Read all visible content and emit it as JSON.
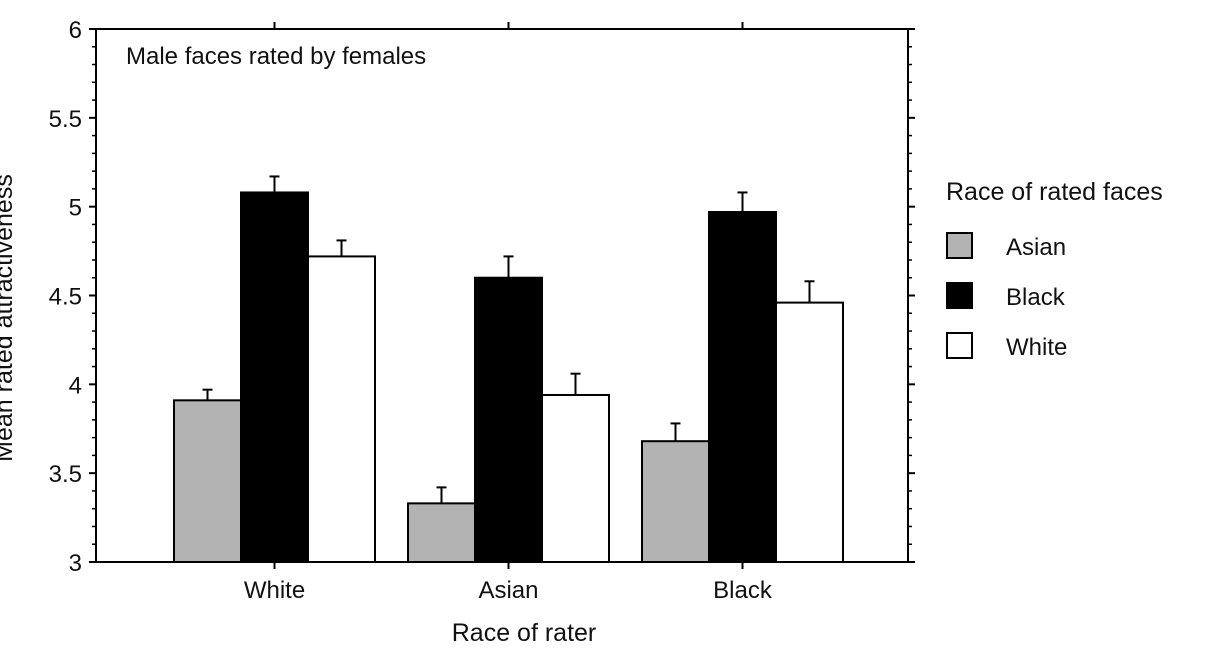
{
  "chart_data": {
    "type": "bar",
    "title": "Male faces rated by females",
    "xlabel": "Race of rater",
    "ylabel": "Mean rated attractiveness",
    "ylim": [
      3,
      6
    ],
    "yticks": [
      "3",
      "3.5",
      "4",
      "4.5",
      "5",
      "5.5",
      "6"
    ],
    "categories": [
      "White",
      "Asian",
      "Black"
    ],
    "series": [
      {
        "name": "Asian",
        "values": [
          3.91,
          3.33,
          3.68
        ],
        "errors": [
          0.06,
          0.09,
          0.1
        ],
        "color": "#b3b3b3"
      },
      {
        "name": "Black",
        "values": [
          5.08,
          4.6,
          4.97
        ],
        "errors": [
          0.09,
          0.12,
          0.11
        ],
        "color": "#000000"
      },
      {
        "name": "White",
        "values": [
          4.72,
          3.94,
          4.46
        ],
        "errors": [
          0.09,
          0.12,
          0.12
        ],
        "color": "#ffffff"
      }
    ],
    "legend": {
      "title": "Race of rated faces",
      "position": "right"
    },
    "grid": false
  }
}
